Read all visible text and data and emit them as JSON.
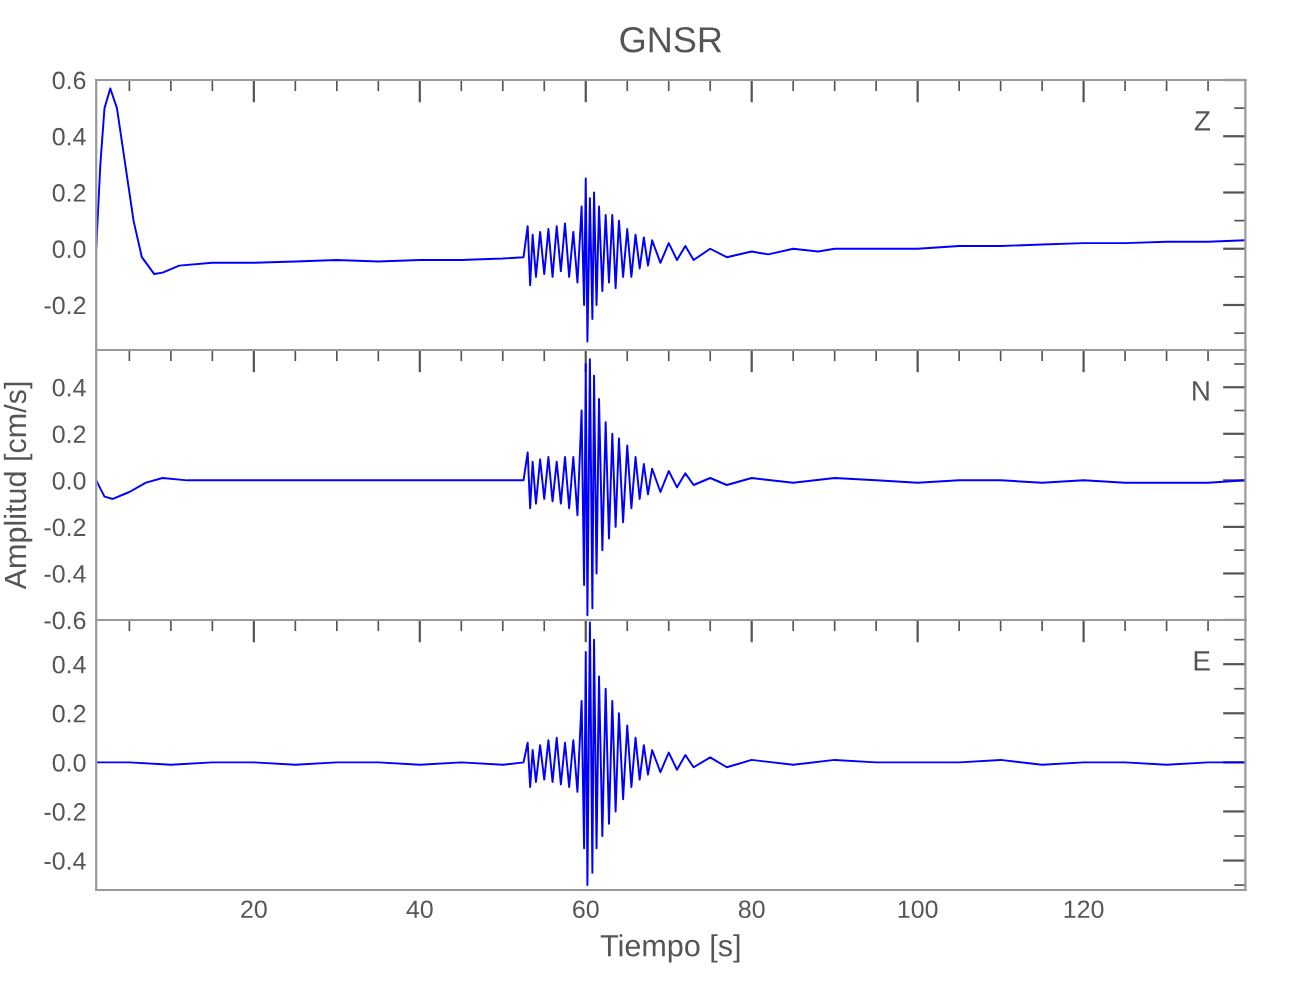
{
  "chart_data": [
    {
      "type": "line",
      "title": "GNSR",
      "annotations": [
        "Z"
      ],
      "xlim": [
        1,
        139.5
      ],
      "ylim": [
        -0.36,
        0.6
      ],
      "xticks": [
        20,
        40,
        60,
        80,
        100,
        120
      ],
      "yticks": [
        {
          "value": -0.2,
          "label": "-0.2"
        },
        {
          "value": 0,
          "label": "0.0"
        },
        {
          "value": 0.2,
          "label": "0.2"
        },
        {
          "value": 0.4,
          "label": "0.4"
        },
        {
          "value": 0.6,
          "label": "0.6"
        }
      ],
      "tick_labels": "y",
      "grid": false,
      "series": [
        {
          "color": "#0000ff",
          "x": [
            1,
            1.5,
            2,
            2.7,
            3.5,
            4.5,
            5.5,
            6.5,
            8,
            9,
            11,
            15,
            20,
            25,
            30,
            35,
            40,
            45,
            50,
            52.5,
            53,
            53.3,
            53.6,
            54,
            54.5,
            55,
            55.5,
            56,
            56.5,
            57,
            57.5,
            58,
            58.5,
            59,
            59.5,
            59.8,
            60,
            60.2,
            60.5,
            60.8,
            61,
            61.3,
            61.6,
            62,
            62.4,
            62.8,
            63.2,
            63.6,
            64,
            64.5,
            65,
            65.5,
            66,
            66.5,
            67,
            67.5,
            68,
            69,
            70,
            71,
            72,
            73,
            75,
            77,
            80,
            82,
            85,
            88,
            90,
            95,
            100,
            105,
            110,
            115,
            120,
            125,
            130,
            135,
            139.5
          ],
          "values": [
            0.0,
            0.3,
            0.5,
            0.57,
            0.5,
            0.3,
            0.1,
            -0.03,
            -0.09,
            -0.085,
            -0.06,
            -0.05,
            -0.05,
            -0.045,
            -0.04,
            -0.045,
            -0.04,
            -0.04,
            -0.035,
            -0.03,
            0.08,
            -0.13,
            0.05,
            -0.1,
            0.06,
            -0.09,
            0.07,
            -0.1,
            0.08,
            -0.08,
            0.09,
            -0.1,
            0.06,
            -0.12,
            0.15,
            -0.2,
            0.25,
            -0.33,
            0.18,
            -0.25,
            0.2,
            -0.2,
            0.15,
            -0.15,
            0.12,
            -0.12,
            0.12,
            -0.14,
            0.1,
            -0.1,
            0.07,
            -0.1,
            0.05,
            -0.07,
            0.04,
            -0.06,
            0.03,
            -0.05,
            0.02,
            -0.04,
            0.01,
            -0.04,
            0.0,
            -0.03,
            -0.01,
            -0.02,
            0.0,
            -0.01,
            0.0,
            0.0,
            0.0,
            0.01,
            0.01,
            0.015,
            0.02,
            0.02,
            0.025,
            0.025,
            0.03
          ]
        }
      ]
    },
    {
      "type": "line",
      "ylabel": "Amplitud [cm/s]",
      "annotations": [
        "N"
      ],
      "xlim": [
        1,
        139.5
      ],
      "ylim": [
        -0.6,
        0.56
      ],
      "xticks": [
        20,
        40,
        60,
        80,
        100,
        120
      ],
      "yticks": [
        {
          "value": -0.6,
          "label": "-0.6"
        },
        {
          "value": -0.4,
          "label": "-0.4"
        },
        {
          "value": -0.2,
          "label": "-0.2"
        },
        {
          "value": 0,
          "label": "0.0"
        },
        {
          "value": 0.2,
          "label": "0.2"
        },
        {
          "value": 0.4,
          "label": "0.4"
        }
      ],
      "tick_labels": "y",
      "grid": false,
      "series": [
        {
          "color": "#0000ff",
          "x": [
            1,
            2,
            3,
            5,
            7,
            9,
            12,
            20,
            30,
            40,
            50,
            52.5,
            53,
            53.3,
            53.6,
            54,
            54.5,
            55,
            55.5,
            56,
            56.5,
            57,
            57.5,
            58,
            58.5,
            59,
            59.5,
            59.8,
            60,
            60.2,
            60.5,
            60.8,
            61,
            61.3,
            61.6,
            62,
            62.4,
            62.8,
            63.2,
            63.6,
            64,
            64.5,
            65,
            65.5,
            66,
            66.5,
            67,
            67.5,
            68,
            69,
            70,
            71,
            72,
            73,
            75,
            77,
            80,
            85,
            90,
            95,
            100,
            105,
            110,
            115,
            120,
            125,
            130,
            135,
            139.5
          ],
          "values": [
            0.0,
            -0.07,
            -0.08,
            -0.05,
            -0.01,
            0.01,
            0.0,
            0.0,
            0.0,
            0.0,
            0.0,
            0.0,
            0.12,
            -0.12,
            0.08,
            -0.1,
            0.09,
            -0.08,
            0.1,
            -0.09,
            0.08,
            -0.1,
            0.1,
            -0.12,
            0.1,
            -0.15,
            0.3,
            -0.45,
            0.5,
            -0.58,
            0.52,
            -0.55,
            0.45,
            -0.4,
            0.35,
            -0.3,
            0.25,
            -0.25,
            0.2,
            -0.2,
            0.18,
            -0.18,
            0.15,
            -0.12,
            0.1,
            -0.08,
            0.07,
            -0.06,
            0.05,
            -0.05,
            0.04,
            -0.03,
            0.03,
            -0.02,
            0.01,
            -0.02,
            0.01,
            -0.01,
            0.01,
            0.0,
            -0.01,
            0.0,
            0.0,
            -0.01,
            0.0,
            -0.01,
            -0.01,
            -0.01,
            0.0
          ]
        }
      ]
    },
    {
      "type": "line",
      "xlabel": "Tiempo [s]",
      "annotations": [
        "E"
      ],
      "xlim": [
        1,
        139.5
      ],
      "ylim": [
        -0.52,
        0.58
      ],
      "xticks": [
        20,
        40,
        60,
        80,
        100,
        120
      ],
      "yticks": [
        {
          "value": -0.4,
          "label": "-0.4"
        },
        {
          "value": -0.2,
          "label": "-0.2"
        },
        {
          "value": 0,
          "label": "0.0"
        },
        {
          "value": 0.2,
          "label": "0.2"
        },
        {
          "value": 0.4,
          "label": "0.4"
        }
      ],
      "grid": false,
      "series": [
        {
          "color": "#0000ff",
          "x": [
            1,
            5,
            10,
            15,
            20,
            25,
            30,
            35,
            40,
            45,
            50,
            52.5,
            53,
            53.3,
            53.6,
            54,
            54.5,
            55,
            55.5,
            56,
            56.5,
            57,
            57.5,
            58,
            58.5,
            59,
            59.5,
            59.8,
            60,
            60.2,
            60.5,
            60.8,
            61,
            61.3,
            61.6,
            62,
            62.4,
            62.8,
            63.2,
            63.6,
            64,
            64.5,
            65,
            65.5,
            66,
            66.5,
            67,
            67.5,
            68,
            69,
            70,
            71,
            72,
            73,
            75,
            77,
            80,
            85,
            90,
            95,
            100,
            105,
            110,
            115,
            120,
            125,
            130,
            135,
            139.5
          ],
          "values": [
            0.0,
            0.0,
            -0.01,
            0.0,
            0.0,
            -0.01,
            0.0,
            0.0,
            -0.01,
            0.0,
            -0.01,
            0.0,
            0.08,
            -0.1,
            0.05,
            -0.08,
            0.07,
            -0.07,
            0.09,
            -0.08,
            0.1,
            -0.09,
            0.08,
            -0.1,
            0.09,
            -0.12,
            0.25,
            -0.35,
            0.45,
            -0.5,
            0.57,
            -0.45,
            0.5,
            -0.35,
            0.35,
            -0.3,
            0.3,
            -0.25,
            0.25,
            -0.2,
            0.2,
            -0.15,
            0.15,
            -0.1,
            0.1,
            -0.07,
            0.07,
            -0.05,
            0.05,
            -0.04,
            0.04,
            -0.03,
            0.03,
            -0.02,
            0.02,
            -0.02,
            0.01,
            -0.01,
            0.01,
            0.0,
            0.0,
            0.0,
            0.01,
            -0.01,
            0.0,
            0.0,
            -0.01,
            0.0,
            0.0
          ]
        }
      ]
    }
  ]
}
